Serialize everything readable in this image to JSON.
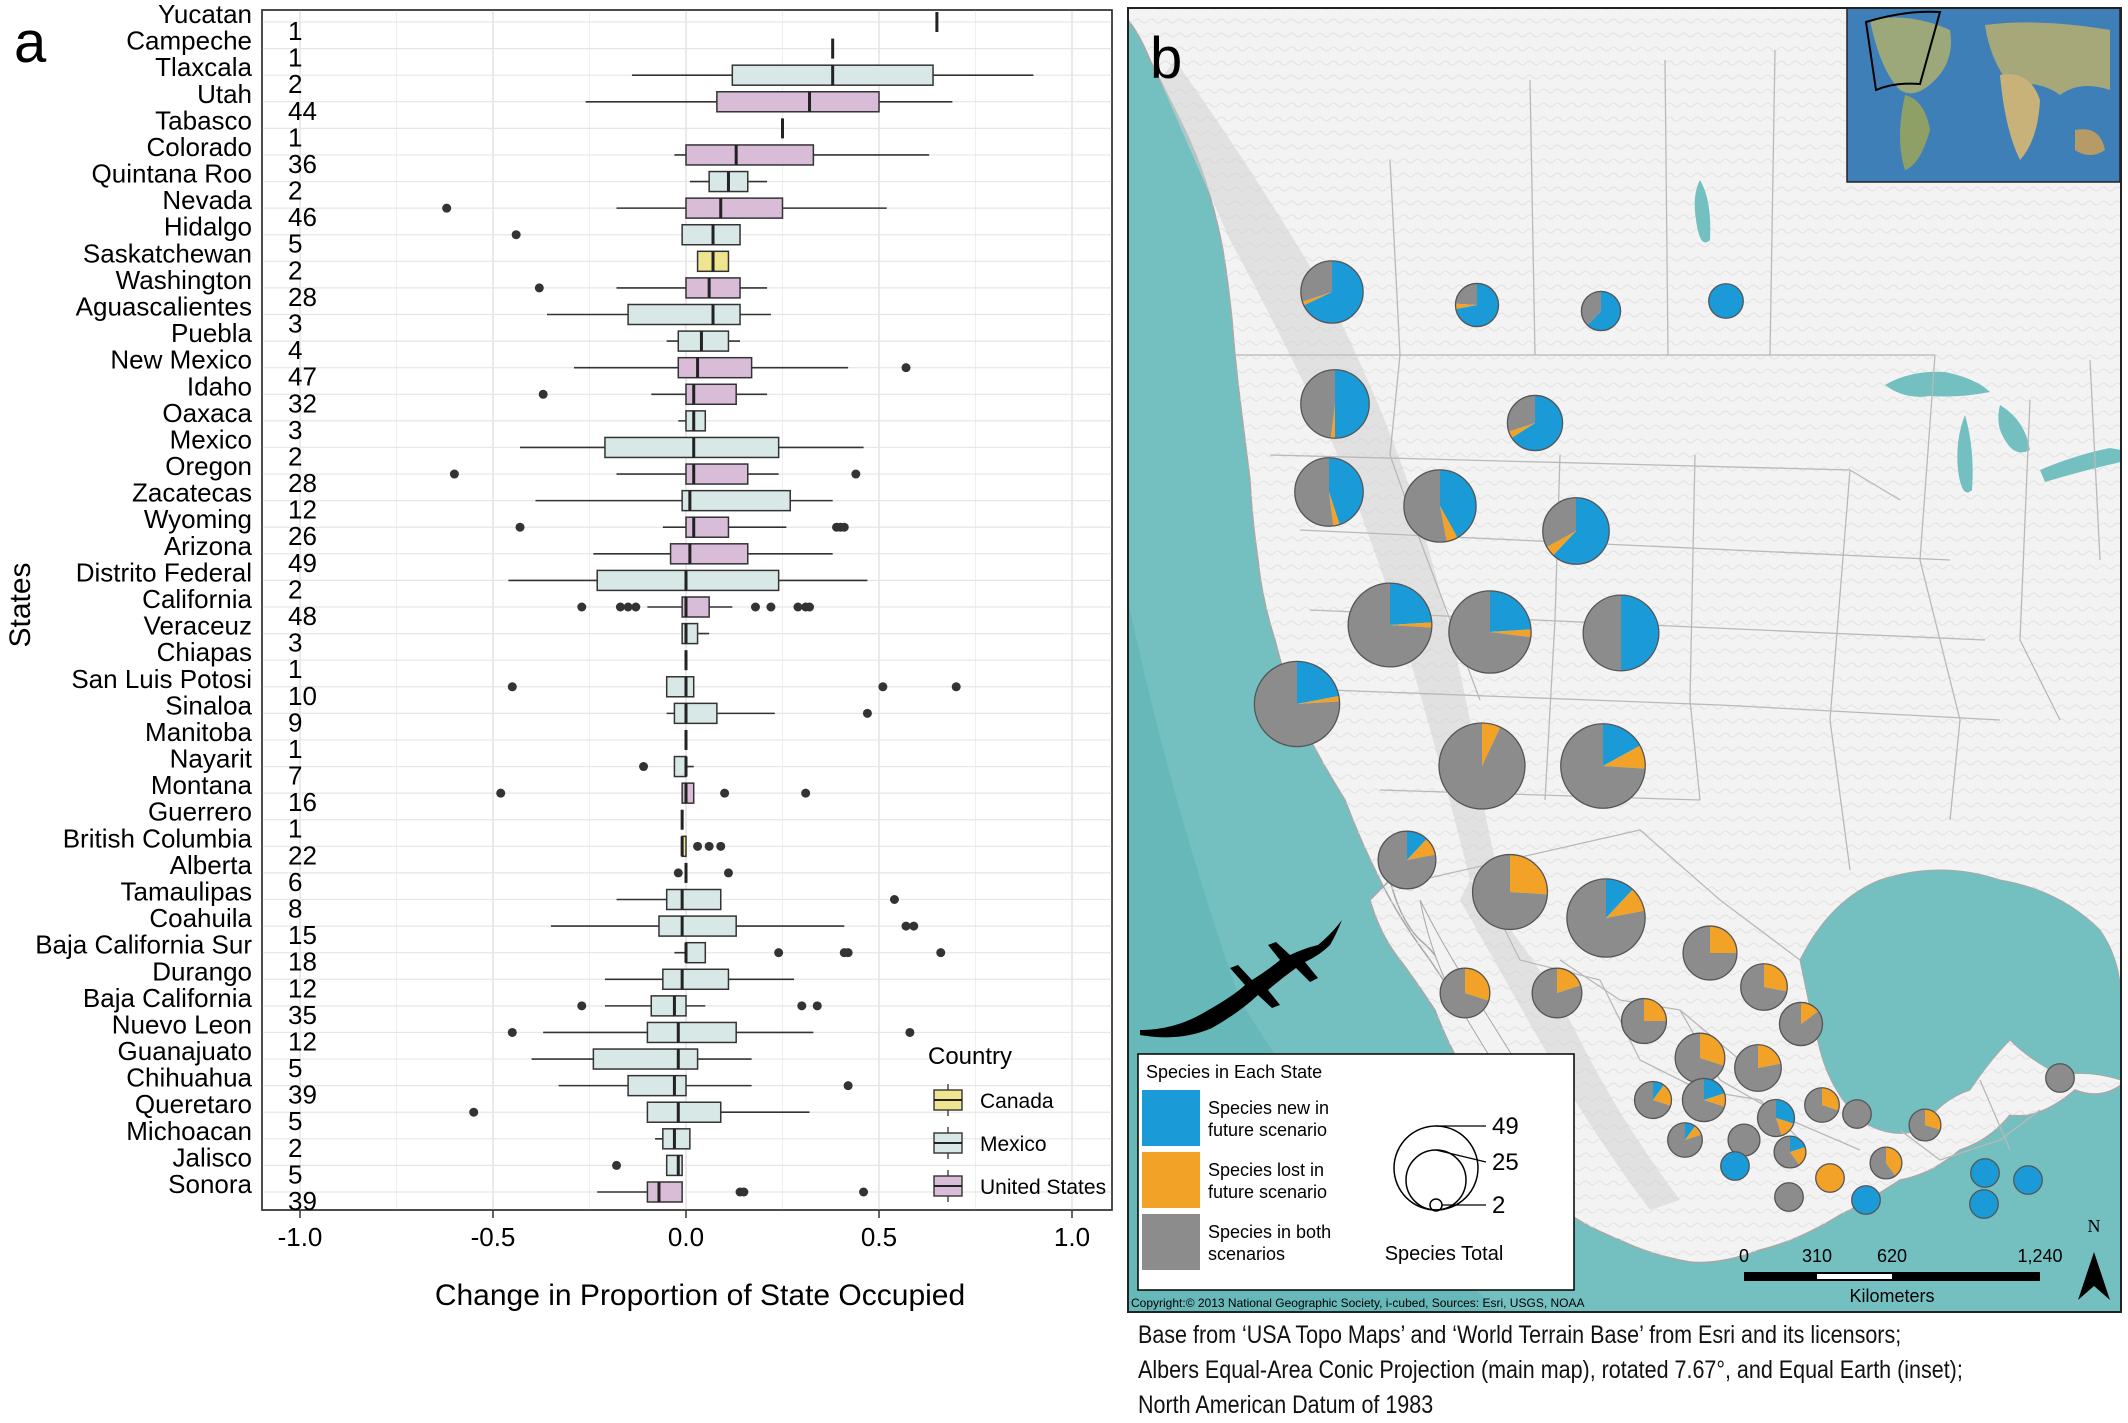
{
  "panel_a_letter": "a",
  "panel_b_letter": "b",
  "chart_data": {
    "type": "box",
    "xlabel": "Change in Proportion of State Occupied",
    "ylabel": "States",
    "xlim": [
      -1.0,
      1.0
    ],
    "xticks": [
      "-1.0",
      "-0.5",
      "0.0",
      "0.5",
      "1.0"
    ],
    "grid": true,
    "legend": {
      "title": "Country",
      "entries": [
        "Canada",
        "Mexico",
        "United States"
      ],
      "placement": "bottom-right"
    },
    "colors": {
      "Canada": "#efe48f",
      "Mexico": "#d8e8e7",
      "United States": "#d8bcd8"
    },
    "rows": [
      {
        "state": "Yucatan",
        "n": "1",
        "country": "Mexico",
        "q1": 0.65,
        "med": 0.65,
        "q3": 0.65,
        "wlo": 0.65,
        "whi": 0.65,
        "out": []
      },
      {
        "state": "Campeche",
        "n": "1",
        "country": "Mexico",
        "q1": 0.38,
        "med": 0.38,
        "q3": 0.38,
        "wlo": 0.38,
        "whi": 0.38,
        "out": []
      },
      {
        "state": "Tlaxcala",
        "n": "2",
        "country": "Mexico",
        "q1": 0.12,
        "med": 0.38,
        "q3": 0.64,
        "wlo": -0.14,
        "whi": 0.9,
        "out": []
      },
      {
        "state": "Utah",
        "n": "44",
        "country": "United States",
        "q1": 0.08,
        "med": 0.32,
        "q3": 0.5,
        "wlo": -0.26,
        "whi": 0.69,
        "out": []
      },
      {
        "state": "Tabasco",
        "n": "1",
        "country": "Mexico",
        "q1": 0.25,
        "med": 0.25,
        "q3": 0.25,
        "wlo": 0.25,
        "whi": 0.25,
        "out": []
      },
      {
        "state": "Colorado",
        "n": "36",
        "country": "United States",
        "q1": 0.0,
        "med": 0.13,
        "q3": 0.33,
        "wlo": -0.03,
        "whi": 0.63,
        "out": []
      },
      {
        "state": "Quintana Roo",
        "n": "2",
        "country": "Mexico",
        "q1": 0.06,
        "med": 0.11,
        "q3": 0.16,
        "wlo": 0.01,
        "whi": 0.21,
        "out": []
      },
      {
        "state": "Nevada",
        "n": "46",
        "country": "United States",
        "q1": 0.0,
        "med": 0.09,
        "q3": 0.25,
        "wlo": -0.18,
        "whi": 0.52,
        "out": [
          -0.62
        ]
      },
      {
        "state": "Hidalgo",
        "n": "5",
        "country": "Mexico",
        "q1": -0.01,
        "med": 0.07,
        "q3": 0.14,
        "wlo": -0.01,
        "whi": 0.14,
        "out": [
          -0.44
        ]
      },
      {
        "state": "Saskatchewan",
        "n": "2",
        "country": "Canada",
        "q1": 0.03,
        "med": 0.07,
        "q3": 0.11,
        "wlo": 0.03,
        "whi": 0.11,
        "out": []
      },
      {
        "state": "Washington",
        "n": "28",
        "country": "United States",
        "q1": 0.0,
        "med": 0.06,
        "q3": 0.14,
        "wlo": -0.18,
        "whi": 0.21,
        "out": [
          -0.38
        ]
      },
      {
        "state": "Aguascalientes",
        "n": "3",
        "country": "Mexico",
        "q1": -0.15,
        "med": 0.07,
        "q3": 0.14,
        "wlo": -0.36,
        "whi": 0.22,
        "out": []
      },
      {
        "state": "Puebla",
        "n": "4",
        "country": "Mexico",
        "q1": -0.02,
        "med": 0.04,
        "q3": 0.11,
        "wlo": -0.05,
        "whi": 0.14,
        "out": []
      },
      {
        "state": "New Mexico",
        "n": "47",
        "country": "United States",
        "q1": -0.02,
        "med": 0.03,
        "q3": 0.17,
        "wlo": -0.29,
        "whi": 0.42,
        "out": [
          0.57
        ]
      },
      {
        "state": "Idaho",
        "n": "32",
        "country": "United States",
        "q1": 0.0,
        "med": 0.02,
        "q3": 0.13,
        "wlo": -0.09,
        "whi": 0.21,
        "out": [
          -0.37
        ]
      },
      {
        "state": "Oaxaca",
        "n": "3",
        "country": "Mexico",
        "q1": 0.0,
        "med": 0.02,
        "q3": 0.05,
        "wlo": -0.02,
        "whi": 0.05,
        "out": []
      },
      {
        "state": "Mexico",
        "n": "2",
        "country": "Mexico",
        "q1": -0.21,
        "med": 0.02,
        "q3": 0.24,
        "wlo": -0.43,
        "whi": 0.46,
        "out": []
      },
      {
        "state": "Oregon",
        "n": "28",
        "country": "United States",
        "q1": 0.0,
        "med": 0.02,
        "q3": 0.16,
        "wlo": -0.18,
        "whi": 0.24,
        "out": [
          -0.6,
          0.44
        ]
      },
      {
        "state": "Zacatecas",
        "n": "12",
        "country": "Mexico",
        "q1": -0.01,
        "med": 0.01,
        "q3": 0.27,
        "wlo": -0.39,
        "whi": 0.38,
        "out": []
      },
      {
        "state": "Wyoming",
        "n": "26",
        "country": "United States",
        "q1": 0.0,
        "med": 0.02,
        "q3": 0.11,
        "wlo": -0.06,
        "whi": 0.26,
        "out": [
          -0.43,
          0.39,
          0.4,
          0.41
        ]
      },
      {
        "state": "Arizona",
        "n": "49",
        "country": "United States",
        "q1": -0.04,
        "med": 0.01,
        "q3": 0.16,
        "wlo": -0.24,
        "whi": 0.38,
        "out": []
      },
      {
        "state": "Distrito Federal",
        "n": "2",
        "country": "Mexico",
        "q1": -0.23,
        "med": 0.0,
        "q3": 0.24,
        "wlo": -0.46,
        "whi": 0.47,
        "out": []
      },
      {
        "state": "California",
        "n": "48",
        "country": "United States",
        "q1": -0.01,
        "med": 0.0,
        "q3": 0.06,
        "wlo": -0.1,
        "whi": 0.12,
        "out": [
          -0.27,
          -0.17,
          -0.15,
          -0.13,
          0.18,
          0.22,
          0.29,
          0.31,
          0.32
        ]
      },
      {
        "state": "Veraceuz",
        "n": "3",
        "country": "Mexico",
        "q1": -0.01,
        "med": 0.0,
        "q3": 0.03,
        "wlo": -0.01,
        "whi": 0.06,
        "out": []
      },
      {
        "state": "Chiapas",
        "n": "1",
        "country": "Mexico",
        "q1": 0.0,
        "med": 0.0,
        "q3": 0.0,
        "wlo": 0.0,
        "whi": 0.0,
        "out": []
      },
      {
        "state": "San Luis Potosi",
        "n": "10",
        "country": "Mexico",
        "q1": -0.05,
        "med": 0.0,
        "q3": 0.02,
        "wlo": -0.05,
        "whi": 0.02,
        "out": [
          -0.45,
          0.51,
          0.7
        ]
      },
      {
        "state": "Sinaloa",
        "n": "9",
        "country": "Mexico",
        "q1": -0.03,
        "med": 0.0,
        "q3": 0.08,
        "wlo": -0.05,
        "whi": 0.23,
        "out": [
          0.47
        ]
      },
      {
        "state": "Manitoba",
        "n": "1",
        "country": "Canada",
        "q1": 0.0,
        "med": 0.0,
        "q3": 0.0,
        "wlo": 0.0,
        "whi": 0.0,
        "out": []
      },
      {
        "state": "Nayarit",
        "n": "7",
        "country": "Mexico",
        "q1": -0.03,
        "med": 0.0,
        "q3": 0.0,
        "wlo": -0.03,
        "whi": 0.02,
        "out": [
          -0.11
        ]
      },
      {
        "state": "Montana",
        "n": "16",
        "country": "United States",
        "q1": -0.01,
        "med": 0.0,
        "q3": 0.02,
        "wlo": -0.01,
        "whi": 0.02,
        "out": [
          -0.48,
          0.1,
          0.31
        ]
      },
      {
        "state": "Guerrero",
        "n": "1",
        "country": "Mexico",
        "q1": -0.01,
        "med": -0.01,
        "q3": -0.01,
        "wlo": -0.01,
        "whi": -0.01,
        "out": []
      },
      {
        "state": "British Columbia",
        "n": "22",
        "country": "Canada",
        "q1": -0.01,
        "med": -0.01,
        "q3": 0.0,
        "wlo": -0.01,
        "whi": 0.0,
        "out": [
          0.03,
          0.06,
          0.09
        ]
      },
      {
        "state": "Alberta",
        "n": "6",
        "country": "Canada",
        "q1": 0.0,
        "med": 0.0,
        "q3": 0.0,
        "wlo": 0.0,
        "whi": 0.0,
        "out": [
          -0.02,
          0.11
        ]
      },
      {
        "state": "Tamaulipas",
        "n": "8",
        "country": "Mexico",
        "q1": -0.05,
        "med": -0.01,
        "q3": 0.09,
        "wlo": -0.18,
        "whi": 0.09,
        "out": [
          0.54
        ]
      },
      {
        "state": "Coahuila",
        "n": "15",
        "country": "Mexico",
        "q1": -0.07,
        "med": -0.01,
        "q3": 0.13,
        "wlo": -0.35,
        "whi": 0.41,
        "out": [
          0.57,
          0.59
        ]
      },
      {
        "state": "Baja California Sur",
        "n": "18",
        "country": "Mexico",
        "q1": 0.0,
        "med": 0.0,
        "q3": 0.05,
        "wlo": -0.03,
        "whi": 0.05,
        "out": [
          0.24,
          0.41,
          0.42,
          0.66
        ]
      },
      {
        "state": "Durango",
        "n": "12",
        "country": "Mexico",
        "q1": -0.06,
        "med": -0.01,
        "q3": 0.11,
        "wlo": -0.21,
        "whi": 0.28,
        "out": []
      },
      {
        "state": "Baja California",
        "n": "35",
        "country": "Mexico",
        "q1": -0.09,
        "med": -0.03,
        "q3": 0.0,
        "wlo": -0.21,
        "whi": 0.05,
        "out": [
          -0.27,
          0.3,
          0.34
        ]
      },
      {
        "state": "Nuevo Leon",
        "n": "12",
        "country": "Mexico",
        "q1": -0.1,
        "med": -0.02,
        "q3": 0.13,
        "wlo": -0.37,
        "whi": 0.33,
        "out": [
          -0.45,
          0.58
        ]
      },
      {
        "state": "Guanajuato",
        "n": "5",
        "country": "Mexico",
        "q1": -0.24,
        "med": -0.02,
        "q3": 0.03,
        "wlo": -0.4,
        "whi": 0.17,
        "out": []
      },
      {
        "state": "Chihuahua",
        "n": "39",
        "country": "Mexico",
        "q1": -0.15,
        "med": -0.03,
        "q3": 0.0,
        "wlo": -0.33,
        "whi": 0.17,
        "out": [
          0.42
        ]
      },
      {
        "state": "Queretaro",
        "n": "5",
        "country": "Mexico",
        "q1": -0.1,
        "med": -0.02,
        "q3": 0.09,
        "wlo": -0.1,
        "whi": 0.32,
        "out": [
          -0.55
        ]
      },
      {
        "state": "Michoacan",
        "n": "2",
        "country": "Mexico",
        "q1": -0.06,
        "med": -0.03,
        "q3": 0.01,
        "wlo": -0.08,
        "whi": 0.01,
        "out": []
      },
      {
        "state": "Jalisco",
        "n": "5",
        "country": "Mexico",
        "q1": -0.05,
        "med": -0.02,
        "q3": -0.01,
        "wlo": -0.05,
        "whi": -0.01,
        "out": [
          -0.18
        ]
      },
      {
        "state": "Sonora",
        "n": "39",
        "country": "United States",
        "q1": -0.1,
        "med": -0.07,
        "q3": -0.01,
        "wlo": -0.23,
        "whi": -0.01,
        "out": [
          0.14,
          0.15,
          0.46
        ]
      }
    ]
  },
  "map": {
    "colors": {
      "new": "#1a9ad6",
      "lost": "#f2a327",
      "both": "#8c8c8c",
      "ocean": "#7dc3c3",
      "land": "#f4f4f4"
    },
    "legend_title": "Species in Each State",
    "legend_items": [
      {
        "line1": "Species new in",
        "line2": "future scenario",
        "color": "new"
      },
      {
        "line1": "Species lost in",
        "line2": "future scenario",
        "color": "lost"
      },
      {
        "line1": "Species in both",
        "line2": "scenarios",
        "color": "both"
      }
    ],
    "size_legend_title": "Species Total",
    "size_values": [
      "49",
      "25",
      "2"
    ],
    "scale_ticks": [
      "0",
      "310",
      "620",
      "1,240"
    ],
    "scale_unit": "Kilometers",
    "north": "N",
    "copyright": "Copyright:© 2013 National Geographic Society, i-cubed, Sources: Esri, USGS, NOAA",
    "pies": [
      {
        "total": 22,
        "new": 0.68,
        "lost": 0.02
      },
      {
        "total": 8,
        "new": 0.72,
        "lost": 0.04
      },
      {
        "total": 6,
        "new": 0.62,
        "lost": 0.0
      },
      {
        "total": 4,
        "new": 1.0,
        "lost": 0.0
      },
      {
        "total": 28,
        "new": 0.5,
        "lost": 0.02
      },
      {
        "total": 16,
        "new": 0.66,
        "lost": 0.04
      },
      {
        "total": 28,
        "new": 0.45,
        "lost": 0.03
      },
      {
        "total": 32,
        "new": 0.42,
        "lost": 0.05
      },
      {
        "total": 26,
        "new": 0.62,
        "lost": 0.05
      },
      {
        "total": 46,
        "new": 0.24,
        "lost": 0.02
      },
      {
        "total": 44,
        "new": 0.24,
        "lost": 0.03
      },
      {
        "total": 36,
        "new": 0.5,
        "lost": 0.0
      },
      {
        "total": 48,
        "new": 0.22,
        "lost": 0.02
      },
      {
        "total": 49,
        "new": 0.0,
        "lost": 0.07
      },
      {
        "total": 47,
        "new": 0.17,
        "lost": 0.09
      },
      {
        "total": 18,
        "new": 0.12,
        "lost": 0.1
      },
      {
        "total": 35,
        "new": 0.0,
        "lost": 0.26
      },
      {
        "total": 39,
        "new": 0.12,
        "lost": 0.1
      },
      {
        "total": 15,
        "new": 0.0,
        "lost": 0.25
      },
      {
        "total": 12,
        "new": 0.0,
        "lost": 0.3
      },
      {
        "total": 12,
        "new": 0.0,
        "lost": 0.2
      },
      {
        "total": 9,
        "new": 0.0,
        "lost": 0.25
      },
      {
        "total": 10,
        "new": 0.0,
        "lost": 0.28
      },
      {
        "total": 8,
        "new": 0.0,
        "lost": 0.15
      },
      {
        "total": 12,
        "new": 0.0,
        "lost": 0.3
      },
      {
        "total": 10,
        "new": 0.0,
        "lost": 0.22
      },
      {
        "total": 5,
        "new": 0.1,
        "lost": 0.2
      },
      {
        "total": 8,
        "new": 0.2,
        "lost": 0.1
      },
      {
        "total": 5,
        "new": 0.3,
        "lost": 0.15
      },
      {
        "total": 4,
        "new": 0.0,
        "lost": 0.3
      },
      {
        "total": 2,
        "new": 0.0,
        "lost": 0.0
      },
      {
        "total": 3,
        "new": 0.0,
        "lost": 0.3
      },
      {
        "total": 3,
        "new": 0.25,
        "lost": 0.0
      },
      {
        "total": 4,
        "new": 0.1,
        "lost": 0.1
      },
      {
        "total": 3,
        "new": 0.0,
        "lost": 0.0
      },
      {
        "total": 3,
        "new": 0.2,
        "lost": 0.2
      },
      {
        "total": 2,
        "new": 0.0,
        "lost": 1.0
      },
      {
        "total": 3,
        "new": 0.0,
        "lost": 0.4
      },
      {
        "total": 2,
        "new": 1.0,
        "lost": 0.0
      },
      {
        "total": 2,
        "new": 0.0,
        "lost": 0.0
      },
      {
        "total": 2,
        "new": 1.0,
        "lost": 0.0
      },
      {
        "total": 2,
        "new": 1.0,
        "lost": 0.0
      },
      {
        "total": 2,
        "new": 0.0,
        "lost": 0.0
      },
      {
        "total": 2,
        "new": 1.0,
        "lost": 0.0
      },
      {
        "total": 2,
        "new": 1.0,
        "lost": 0.0
      }
    ]
  },
  "caption_lines": [
    "Base from ‘USA Topo Maps’ and ‘World Terrain  Base’ from Esri and its licensors;",
    "Albers Equal-Area Conic Projection (main map), rotated 7.67°, and Equal Earth (inset);",
    "North American Datum of 1983"
  ]
}
